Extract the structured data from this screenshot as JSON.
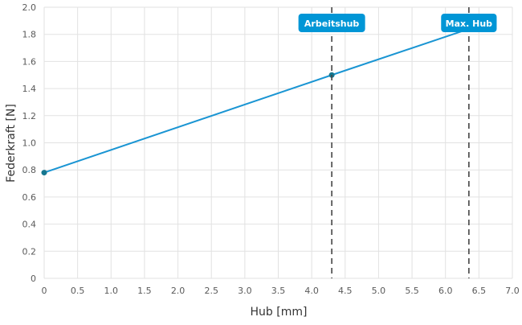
{
  "chart_data": {
    "type": "line",
    "title": "",
    "xlabel": "Hub [mm]",
    "ylabel": "Federkraft [N]",
    "xlim": [
      0,
      7.0
    ],
    "ylim": [
      0,
      2.0
    ],
    "grid": true,
    "x_ticks": [
      0,
      0.5,
      1.0,
      1.5,
      2.0,
      2.5,
      3.0,
      3.5,
      4.0,
      4.5,
      5.0,
      5.5,
      6.0,
      6.5,
      7.0
    ],
    "x_tick_labels": [
      "0",
      "0.5",
      "1.0",
      "1.5",
      "2.0",
      "2.5",
      "3.0",
      "3.5",
      "4.0",
      "4.5",
      "5.0",
      "5.5",
      "6.0",
      "6.5",
      "7.0"
    ],
    "y_ticks": [
      0,
      0.2,
      0.4,
      0.6,
      0.8,
      1.0,
      1.2,
      1.4,
      1.6,
      1.8,
      2.0
    ],
    "y_tick_labels": [
      "0",
      "0.2",
      "0.4",
      "0.6",
      "0.8",
      "1.0",
      "1.2",
      "1.4",
      "1.6",
      "1.8",
      "2.0"
    ],
    "series": [
      {
        "x": [
          0,
          4.3,
          6.35
        ],
        "y": [
          0.78,
          1.5,
          1.84
        ],
        "color": "#1a95d3"
      }
    ],
    "points": [
      {
        "x": 0,
        "y": 0.78
      },
      {
        "x": 4.3,
        "y": 1.5
      }
    ],
    "markers": [
      {
        "label": "Arbeitshub",
        "x": 4.3
      },
      {
        "label": "Max. Hub",
        "x": 6.35
      }
    ],
    "colors": {
      "line": "#1a95d3",
      "point": "#15768f",
      "marker_badge": "#0096d6",
      "marker_line": "#444444",
      "grid": "#e2e2e2"
    }
  }
}
